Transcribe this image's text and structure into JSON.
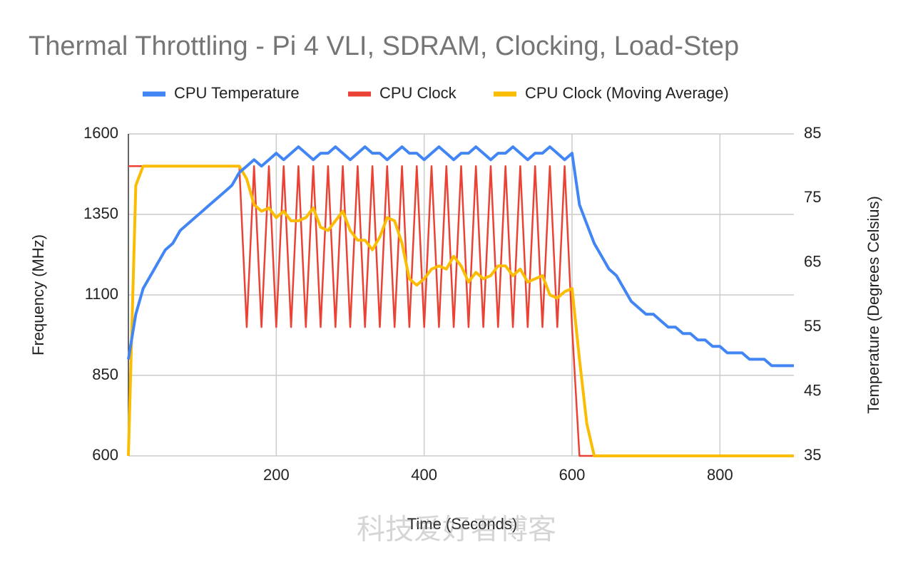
{
  "chart_data": {
    "type": "line",
    "title": "Thermal Throttling - Pi 4 VLI, SDRAM, Clocking, Load-Step",
    "x_label": "Time (Seconds)",
    "y_label": "Frequency (MHz)",
    "y2_label": "Temperature (Degrees Celsius)",
    "watermark": "科技爱好者博客",
    "legend": "top",
    "grid": true,
    "xlim": [
      0,
      900
    ],
    "xticks": [
      200,
      400,
      600,
      800
    ],
    "ylim": [
      600,
      1600
    ],
    "yticks": [
      600,
      850,
      1100,
      1350,
      1600
    ],
    "y2lim": [
      35,
      85
    ],
    "y2ticks": [
      35,
      45,
      55,
      65,
      75,
      85
    ],
    "x": [
      0,
      10,
      20,
      30,
      40,
      50,
      60,
      70,
      80,
      90,
      100,
      110,
      120,
      130,
      140,
      150,
      160,
      170,
      180,
      190,
      200,
      210,
      220,
      230,
      240,
      250,
      260,
      270,
      280,
      290,
      300,
      310,
      320,
      330,
      340,
      350,
      360,
      370,
      380,
      390,
      400,
      410,
      420,
      430,
      440,
      450,
      460,
      470,
      480,
      490,
      500,
      510,
      520,
      530,
      540,
      550,
      560,
      570,
      580,
      590,
      600,
      610,
      620,
      630,
      640,
      650,
      660,
      670,
      680,
      690,
      700,
      710,
      720,
      730,
      740,
      750,
      760,
      770,
      780,
      790,
      800,
      810,
      820,
      830,
      840,
      850,
      860,
      870,
      880,
      890,
      900
    ],
    "series": [
      {
        "name": "CPU Temperature",
        "color": "#4285f4",
        "axis": "y2",
        "values": [
          50,
          57,
          61,
          63,
          65,
          67,
          68,
          70,
          71,
          72,
          73,
          74,
          75,
          76,
          77,
          79,
          80,
          81,
          80,
          81,
          82,
          81,
          82,
          83,
          82,
          81,
          82,
          82,
          83,
          82,
          81,
          82,
          83,
          82,
          82,
          81,
          82,
          83,
          82,
          82,
          81,
          82,
          83,
          82,
          81,
          82,
          82,
          83,
          82,
          81,
          82,
          82,
          83,
          82,
          81,
          82,
          82,
          83,
          82,
          81,
          82,
          74,
          71,
          68,
          66,
          64,
          63,
          61,
          59,
          58,
          57,
          57,
          56,
          55,
          55,
          54,
          54,
          53,
          53,
          52,
          52,
          51,
          51,
          51,
          50,
          50,
          50,
          49,
          49,
          49,
          49
        ]
      },
      {
        "name": "CPU Clock",
        "color": "#ea4335",
        "values": [
          1500,
          1500,
          1500,
          1500,
          1500,
          1500,
          1500,
          1500,
          1500,
          1500,
          1500,
          1500,
          1500,
          1500,
          1500,
          1500,
          1000,
          1500,
          1000,
          1500,
          1000,
          1500,
          1000,
          1500,
          1000,
          1500,
          1000,
          1500,
          1000,
          1500,
          1000,
          1500,
          1000,
          1500,
          1000,
          1500,
          1000,
          1500,
          1000,
          1500,
          1000,
          1500,
          1000,
          1500,
          1000,
          1500,
          1000,
          1500,
          1000,
          1500,
          1000,
          1500,
          1000,
          1500,
          1000,
          1500,
          1000,
          1500,
          1000,
          1500,
          1000,
          600,
          600,
          600,
          600,
          600,
          600,
          600,
          600,
          600,
          600,
          600,
          600,
          600,
          600,
          600,
          600,
          600,
          600,
          600,
          600,
          600,
          600,
          600,
          600,
          600,
          600,
          600,
          600,
          600,
          600
        ]
      },
      {
        "name": "CPU Clock (Moving Average)",
        "color": "#fbbc04",
        "values": [
          600,
          1440,
          1500,
          1500,
          1500,
          1500,
          1500,
          1500,
          1500,
          1500,
          1500,
          1500,
          1500,
          1500,
          1500,
          1500,
          1460,
          1380,
          1360,
          1370,
          1340,
          1360,
          1330,
          1330,
          1340,
          1370,
          1310,
          1300,
          1330,
          1360,
          1300,
          1270,
          1270,
          1240,
          1280,
          1340,
          1330,
          1260,
          1150,
          1130,
          1150,
          1180,
          1190,
          1180,
          1220,
          1190,
          1140,
          1170,
          1150,
          1160,
          1190,
          1190,
          1160,
          1180,
          1140,
          1150,
          1160,
          1100,
          1090,
          1110,
          1120,
          900,
          700,
          600,
          600,
          600,
          600,
          600,
          600,
          600,
          600,
          600,
          600,
          600,
          600,
          600,
          600,
          600,
          600,
          600,
          600,
          600,
          600,
          600,
          600,
          600,
          600,
          600,
          600,
          600,
          600
        ]
      }
    ]
  }
}
